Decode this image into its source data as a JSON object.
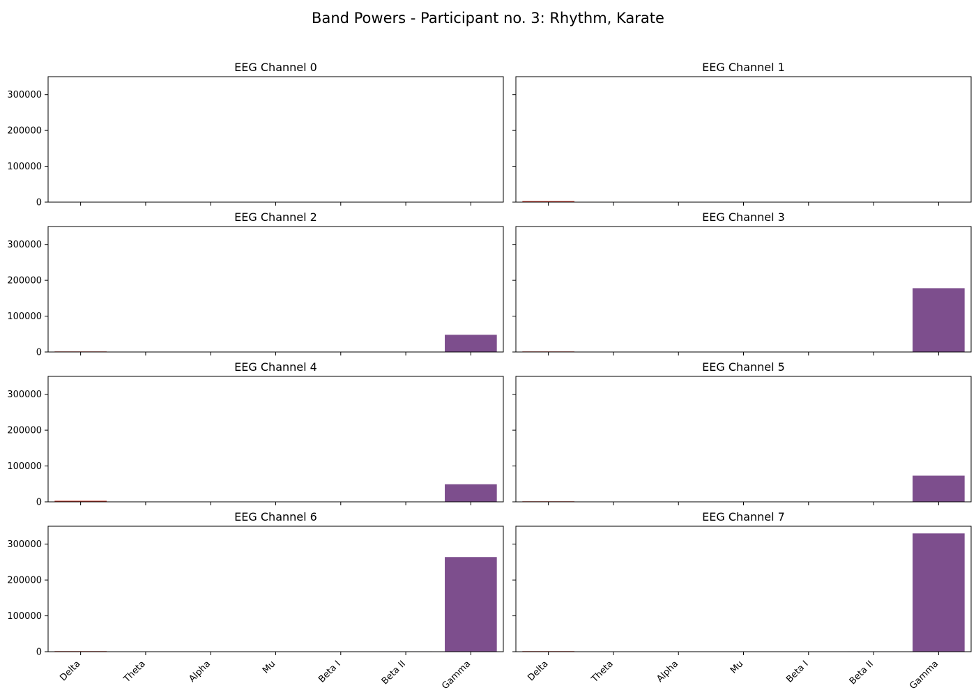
{
  "figure": {
    "title": "Band Powers - Participant no. 3: Rhythm, Karate"
  },
  "chart_data": [
    {
      "type": "bar",
      "title": "EEG Channel 0",
      "categories": [
        "Delta",
        "Theta",
        "Alpha",
        "Mu",
        "Beta I",
        "Beta II",
        "Gamma"
      ],
      "values": [
        100,
        50,
        30,
        20,
        20,
        30,
        200
      ],
      "ylim": [
        0,
        350000
      ],
      "yticks": [
        0,
        100000,
        200000,
        300000
      ],
      "xlabel": "",
      "ylabel": ""
    },
    {
      "type": "bar",
      "title": "EEG Channel 1",
      "categories": [
        "Delta",
        "Theta",
        "Alpha",
        "Mu",
        "Beta I",
        "Beta II",
        "Gamma"
      ],
      "values": [
        3000,
        1000,
        200,
        100,
        100,
        200,
        1000
      ],
      "ylim": [
        0,
        350000
      ],
      "yticks": [
        0,
        100000,
        200000,
        300000
      ],
      "xlabel": "",
      "ylabel": ""
    },
    {
      "type": "bar",
      "title": "EEG Channel 2",
      "categories": [
        "Delta",
        "Theta",
        "Alpha",
        "Mu",
        "Beta I",
        "Beta II",
        "Gamma"
      ],
      "values": [
        1500,
        200,
        100,
        50,
        50,
        100,
        48000
      ],
      "ylim": [
        0,
        350000
      ],
      "yticks": [
        0,
        100000,
        200000,
        300000
      ],
      "xlabel": "",
      "ylabel": ""
    },
    {
      "type": "bar",
      "title": "EEG Channel 3",
      "categories": [
        "Delta",
        "Theta",
        "Alpha",
        "Mu",
        "Beta I",
        "Beta II",
        "Gamma"
      ],
      "values": [
        1500,
        200,
        100,
        50,
        50,
        100,
        178000
      ],
      "ylim": [
        0,
        350000
      ],
      "yticks": [
        0,
        100000,
        200000,
        300000
      ],
      "xlabel": "",
      "ylabel": ""
    },
    {
      "type": "bar",
      "title": "EEG Channel 4",
      "categories": [
        "Delta",
        "Theta",
        "Alpha",
        "Mu",
        "Beta I",
        "Beta II",
        "Gamma"
      ],
      "values": [
        3000,
        300,
        100,
        50,
        50,
        100,
        49000
      ],
      "ylim": [
        0,
        350000
      ],
      "yticks": [
        0,
        100000,
        200000,
        300000
      ],
      "xlabel": "",
      "ylabel": ""
    },
    {
      "type": "bar",
      "title": "EEG Channel 5",
      "categories": [
        "Delta",
        "Theta",
        "Alpha",
        "Mu",
        "Beta I",
        "Beta II",
        "Gamma"
      ],
      "values": [
        1500,
        200,
        100,
        50,
        50,
        100,
        73000
      ],
      "ylim": [
        0,
        350000
      ],
      "yticks": [
        0,
        100000,
        200000,
        300000
      ],
      "xlabel": "",
      "ylabel": ""
    },
    {
      "type": "bar",
      "title": "EEG Channel 6",
      "categories": [
        "Delta",
        "Theta",
        "Alpha",
        "Mu",
        "Beta I",
        "Beta II",
        "Gamma"
      ],
      "values": [
        1500,
        200,
        100,
        50,
        100,
        1000,
        264000
      ],
      "ylim": [
        0,
        350000
      ],
      "yticks": [
        0,
        100000,
        200000,
        300000
      ],
      "xlabel": "",
      "ylabel": ""
    },
    {
      "type": "bar",
      "title": "EEG Channel 7",
      "categories": [
        "Delta",
        "Theta",
        "Alpha",
        "Mu",
        "Beta I",
        "Beta II",
        "Gamma"
      ],
      "values": [
        1500,
        200,
        100,
        50,
        100,
        1000,
        330000
      ],
      "ylim": [
        0,
        350000
      ],
      "yticks": [
        0,
        100000,
        200000,
        300000
      ],
      "xlabel": "",
      "ylabel": ""
    }
  ],
  "colors": {
    "Delta": "#c0392b",
    "Theta": "#d4ac0d",
    "Alpha": "#27ae60",
    "Mu": "#16a085",
    "Beta I": "#2980b9",
    "Beta II": "#1f2a8a",
    "Gamma": "#7d4e8d"
  },
  "layout_grid": {
    "rows": 4,
    "cols": 2,
    "shared_y": true,
    "shared_x": true,
    "grid": false,
    "legend": "none"
  }
}
